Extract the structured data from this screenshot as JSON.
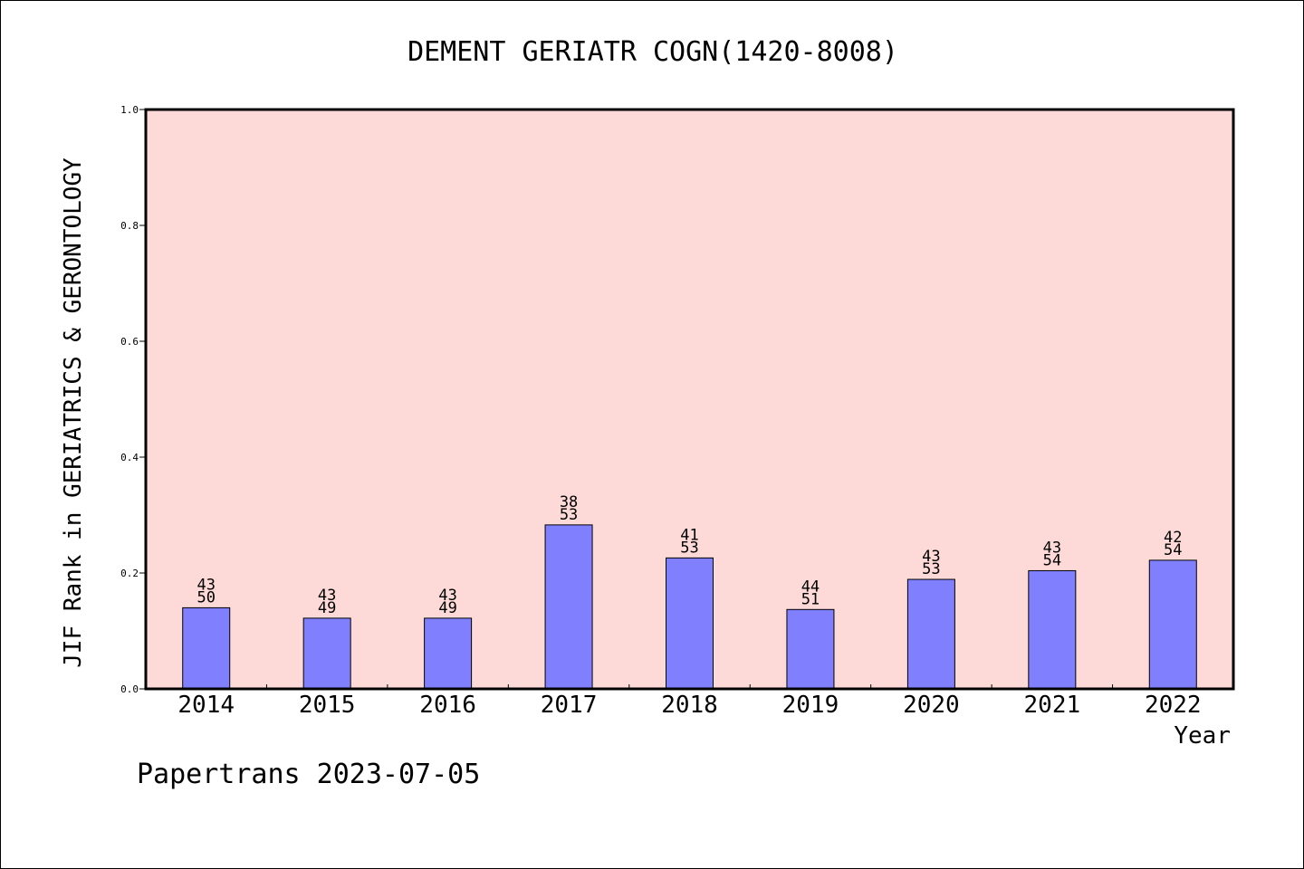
{
  "chart_data": {
    "type": "bar",
    "title": "DEMENT GERIATR COGN(1420-8008)",
    "xlabel": "Year",
    "ylabel": "JIF Rank in GERIATRICS & GERONTOLOGY",
    "ylim": [
      0,
      1.0
    ],
    "yticks": [
      "0.0",
      "0.2",
      "0.4",
      "0.6",
      "0.8",
      "1.0"
    ],
    "categories": [
      "2014",
      "2015",
      "2016",
      "2017",
      "2018",
      "2019",
      "2020",
      "2021",
      "2022"
    ],
    "values": [
      0.14,
      0.122,
      0.122,
      0.283,
      0.226,
      0.137,
      0.189,
      0.204,
      0.222
    ],
    "labels": [
      [
        "43",
        "50"
      ],
      [
        "43",
        "49"
      ],
      [
        "43",
        "49"
      ],
      [
        "38",
        "53"
      ],
      [
        "41",
        "53"
      ],
      [
        "44",
        "51"
      ],
      [
        "43",
        "53"
      ],
      [
        "43",
        "54"
      ],
      [
        "42",
        "54"
      ]
    ],
    "grid": false,
    "colors": {
      "plot_background": "#FDDAD7",
      "bar_fill": "#8080FF",
      "bar_stroke": "#000000"
    }
  },
  "footer": {
    "watermark": "Papertrans 2023-07-05"
  }
}
